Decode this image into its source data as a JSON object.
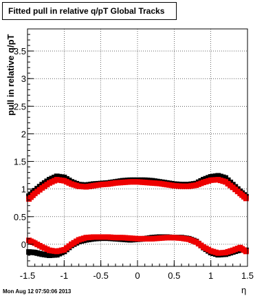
{
  "chart_data": {
    "type": "scatter",
    "title": "Fitted pull in relative q/pT  Global Tracks",
    "ylabel": "pull in relative q/pT",
    "xlabel": "η",
    "timestamp": "Mon Aug 12 07:50:06 2013",
    "xlim": [
      -1.5,
      1.5
    ],
    "ylim": [
      -0.4,
      3.9
    ],
    "grid": true,
    "x_ticks": [
      "-1.5",
      "-1",
      "-0.5",
      "0",
      "0.5",
      "1",
      "1.5"
    ],
    "x_tick_values": [
      -1.5,
      -1,
      -0.5,
      0,
      0.5,
      1,
      1.5
    ],
    "y_ticks": [
      "0",
      "0.5",
      "1",
      "1.5",
      "2",
      "2.5",
      "3",
      "3.5"
    ],
    "y_tick_values": [
      0,
      0.5,
      1,
      1.5,
      2,
      2.5,
      3,
      3.5
    ],
    "series": [
      {
        "color": "#000000",
        "marker": "square",
        "x": [
          -1.48,
          -1.4,
          -1.3,
          -1.2,
          -1.1,
          -1.0,
          -0.9,
          -0.8,
          -0.7,
          -0.6,
          -0.5,
          -0.4,
          -0.3,
          -0.2,
          -0.1,
          0.0,
          0.1,
          0.2,
          0.3,
          0.4,
          0.5,
          0.6,
          0.7,
          0.8,
          0.9,
          1.0,
          1.1,
          1.2,
          1.3,
          1.4,
          1.48
        ],
        "values": [
          0.87,
          0.97,
          1.08,
          1.17,
          1.23,
          1.21,
          1.13,
          1.08,
          1.07,
          1.09,
          1.1,
          1.11,
          1.13,
          1.15,
          1.16,
          1.16,
          1.16,
          1.15,
          1.13,
          1.11,
          1.09,
          1.08,
          1.08,
          1.1,
          1.17,
          1.22,
          1.24,
          1.2,
          1.08,
          0.96,
          0.86
        ]
      },
      {
        "color": "#ee0000",
        "marker": "square",
        "x": [
          -1.48,
          -1.4,
          -1.3,
          -1.2,
          -1.1,
          -1.0,
          -0.9,
          -0.8,
          -0.7,
          -0.6,
          -0.5,
          -0.4,
          -0.3,
          -0.2,
          -0.1,
          0.0,
          0.1,
          0.2,
          0.3,
          0.4,
          0.5,
          0.6,
          0.7,
          0.8,
          0.9,
          1.0,
          1.1,
          1.2,
          1.3,
          1.4,
          1.48
        ],
        "values": [
          0.82,
          0.92,
          1.02,
          1.11,
          1.17,
          1.15,
          1.09,
          1.05,
          1.04,
          1.06,
          1.08,
          1.09,
          1.11,
          1.12,
          1.13,
          1.13,
          1.12,
          1.11,
          1.1,
          1.08,
          1.06,
          1.05,
          1.05,
          1.07,
          1.12,
          1.16,
          1.17,
          1.13,
          1.03,
          0.92,
          0.83
        ]
      },
      {
        "color": "#000000",
        "marker": "square",
        "x": [
          -1.48,
          -1.4,
          -1.3,
          -1.2,
          -1.1,
          -1.0,
          -0.9,
          -0.8,
          -0.7,
          -0.6,
          -0.5,
          -0.4,
          -0.3,
          -0.2,
          -0.1,
          0.0,
          0.1,
          0.2,
          0.3,
          0.4,
          0.5,
          0.6,
          0.7,
          0.8,
          0.9,
          1.0,
          1.1,
          1.2,
          1.3,
          1.4,
          1.48
        ],
        "values": [
          -0.14,
          -0.15,
          -0.18,
          -0.2,
          -0.19,
          -0.13,
          -0.02,
          0.05,
          0.08,
          0.1,
          0.11,
          0.11,
          0.1,
          0.09,
          0.08,
          0.09,
          0.1,
          0.12,
          0.13,
          0.13,
          0.12,
          0.12,
          0.1,
          0.05,
          -0.06,
          -0.15,
          -0.19,
          -0.18,
          -0.14,
          -0.1,
          -0.11
        ]
      },
      {
        "color": "#ee0000",
        "marker": "square",
        "x": [
          -1.48,
          -1.4,
          -1.3,
          -1.2,
          -1.1,
          -1.0,
          -0.9,
          -0.8,
          -0.7,
          -0.6,
          -0.5,
          -0.4,
          -0.3,
          -0.2,
          -0.1,
          0.0,
          0.1,
          0.2,
          0.3,
          0.4,
          0.5,
          0.6,
          0.7,
          0.8,
          0.9,
          1.0,
          1.1,
          1.2,
          1.3,
          1.4,
          1.48
        ],
        "values": [
          0.07,
          0.02,
          -0.05,
          -0.11,
          -0.13,
          -0.1,
          0.0,
          0.08,
          0.12,
          0.13,
          0.13,
          0.13,
          0.12,
          0.12,
          0.11,
          0.1,
          0.1,
          0.1,
          0.11,
          0.12,
          0.12,
          0.11,
          0.09,
          0.04,
          -0.05,
          -0.12,
          -0.16,
          -0.15,
          -0.11,
          -0.06,
          -0.13
        ]
      }
    ]
  }
}
